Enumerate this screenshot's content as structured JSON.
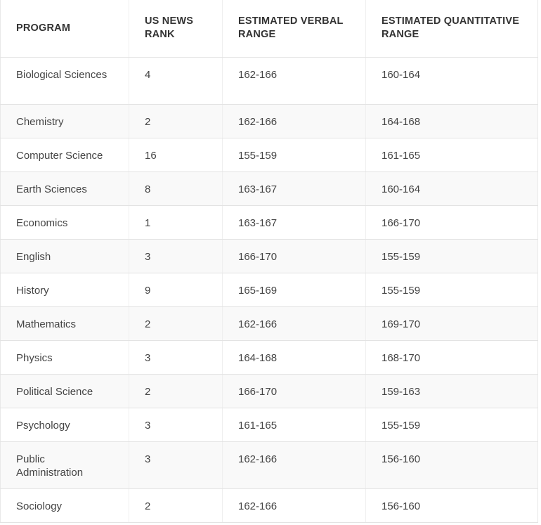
{
  "table": {
    "headers": [
      "PROGRAM",
      "US NEWS RANK",
      "ESTIMATED VERBAL RANGE",
      "ESTIMATED QUANTITATIVE RANGE"
    ],
    "rows": [
      [
        "Biological Sciences",
        "4",
        "162-166",
        "160-164"
      ],
      [
        "Chemistry",
        "2",
        "162-166",
        "164-168"
      ],
      [
        "Computer Science",
        "16",
        "155-159",
        "161-165"
      ],
      [
        "Earth Sciences",
        "8",
        "163-167",
        "160-164"
      ],
      [
        "Economics",
        "1",
        "163-167",
        "166-170"
      ],
      [
        "English",
        "3",
        "166-170",
        "155-159"
      ],
      [
        "History",
        "9",
        "165-169",
        "155-159"
      ],
      [
        "Mathematics",
        "2",
        "162-166",
        "169-170"
      ],
      [
        "Physics",
        "3",
        "164-168",
        "168-170"
      ],
      [
        "Political Science",
        "2",
        "166-170",
        "159-163"
      ],
      [
        "Psychology",
        "3",
        "161-165",
        "155-159"
      ],
      [
        "Public Administration",
        "3",
        "162-166",
        "156-160"
      ],
      [
        "Sociology",
        "2",
        "162-166",
        "156-160"
      ]
    ]
  }
}
